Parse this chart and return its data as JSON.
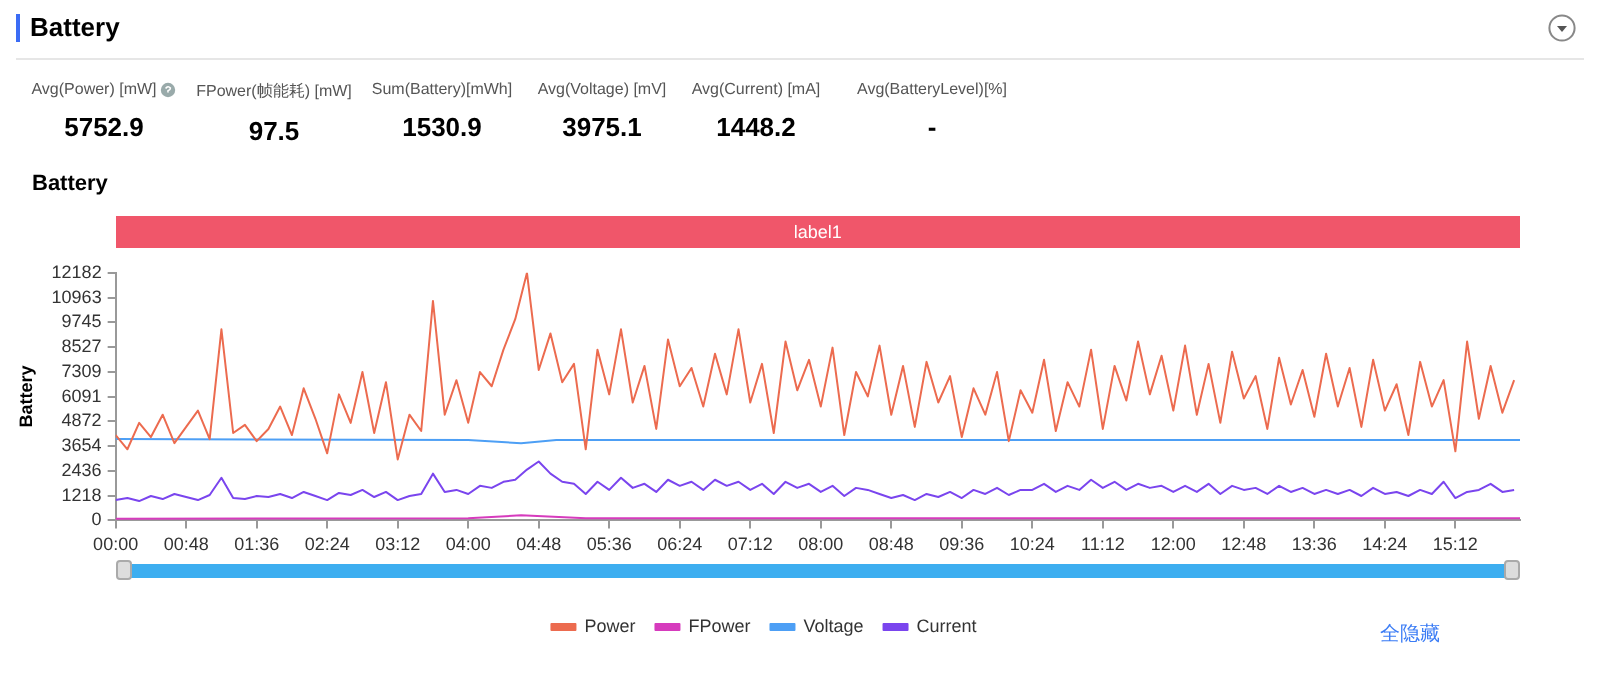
{
  "chart_data": {
    "type": "line",
    "title": "Battery",
    "subtitle": "Battery",
    "ylabel": "Battery",
    "annotations": [
      "Avg(Power) [mW]",
      "FPower(帧能耗) [mW]",
      "Sum(Battery)[mWh]",
      "Avg(Voltage) [mV]",
      "Avg(Current) [mA]",
      "Avg(BatteryLevel)[%]",
      "5752.9",
      "97.5",
      "1530.9",
      "3975.1",
      "1448.2",
      "-",
      "全隐藏",
      "label1"
    ],
    "x": [
      0,
      8,
      16,
      24,
      32,
      40,
      48,
      56,
      64,
      72,
      80,
      88,
      96,
      104,
      112,
      120,
      128,
      136,
      144,
      152,
      160,
      168,
      176,
      184,
      192,
      200,
      208,
      216,
      224,
      232,
      240,
      248,
      256,
      264,
      272,
      280,
      288,
      296,
      304,
      312,
      320,
      328,
      336,
      344,
      352,
      360,
      368,
      376,
      384,
      392,
      400,
      408,
      416,
      424,
      432,
      440,
      448,
      456,
      464,
      472,
      480,
      488,
      496,
      504,
      512,
      520,
      528,
      536,
      544,
      552,
      560,
      568,
      576,
      584,
      592,
      600,
      608,
      616,
      624,
      632,
      640,
      648,
      656,
      664,
      672,
      680,
      688,
      696,
      704,
      712,
      720,
      728,
      736,
      744,
      752,
      760,
      768,
      776,
      784,
      792,
      800,
      808,
      816,
      824,
      832,
      840,
      848,
      856,
      864,
      872,
      880,
      888,
      896,
      904,
      912,
      920,
      928,
      936,
      944,
      952
    ],
    "series": [
      {
        "name": "Power",
        "color": "#ec6b4f",
        "values": [
          4200,
          3500,
          4800,
          4100,
          5200,
          3800,
          4600,
          5400,
          4000,
          9400,
          4300,
          4700,
          3900,
          4500,
          5600,
          4200,
          6500,
          5000,
          3300,
          6200,
          4800,
          7300,
          4300,
          6800,
          3000,
          5200,
          4400,
          10800,
          5200,
          6900,
          4800,
          7300,
          6600,
          8400,
          9900,
          12182,
          7400,
          9200,
          6800,
          7700,
          3500,
          8400,
          6200,
          9400,
          5800,
          7600,
          4500,
          8900,
          6600,
          7500,
          5600,
          8200,
          6200,
          9400,
          5800,
          7700,
          4300,
          8800,
          6400,
          7900,
          5600,
          8500,
          4200,
          7300,
          6100,
          8600,
          5200,
          7600,
          4600,
          7800,
          5800,
          7100,
          4100,
          6500,
          5200,
          7300,
          3900,
          6400,
          5300,
          7900,
          4400,
          6800,
          5600,
          8400,
          4500,
          7600,
          5900,
          8800,
          6200,
          8100,
          5400,
          8600,
          5200,
          7700,
          4800,
          8300,
          6000,
          7100,
          4500,
          8000,
          5700,
          7400,
          5100,
          8200,
          5600,
          7500,
          4600,
          7900,
          5400,
          6700,
          4200,
          7800,
          5600,
          6900,
          3400,
          8800,
          5000,
          7600,
          5300,
          6900
        ]
      },
      {
        "name": "FPower",
        "color": "#d63bbd",
        "x": [
          0,
          240,
          276,
          320,
          956
        ],
        "values": [
          80,
          100,
          250,
          110,
          100
        ]
      },
      {
        "name": "Voltage",
        "color": "#4d9ff5",
        "x": [
          0,
          240,
          276,
          300,
          956
        ],
        "values": [
          4000,
          3950,
          3800,
          3950,
          3950
        ]
      },
      {
        "name": "Current",
        "color": "#7a45ee",
        "values": [
          1000,
          1100,
          950,
          1200,
          1050,
          1300,
          1150,
          1000,
          1250,
          2100,
          1100,
          1050,
          1200,
          1150,
          1300,
          1100,
          1400,
          1200,
          1000,
          1350,
          1250,
          1500,
          1150,
          1400,
          1000,
          1200,
          1300,
          2300,
          1400,
          1500,
          1300,
          1700,
          1600,
          1900,
          2000,
          2500,
          2900,
          2300,
          1900,
          1800,
          1300,
          1900,
          1500,
          2100,
          1600,
          1800,
          1400,
          2000,
          1700,
          1900,
          1500,
          2000,
          1700,
          1900,
          1500,
          1800,
          1300,
          1900,
          1600,
          1800,
          1400,
          1700,
          1200,
          1600,
          1500,
          1300,
          1100,
          1250,
          1000,
          1300,
          1150,
          1400,
          1100,
          1500,
          1300,
          1600,
          1250,
          1500,
          1500,
          1800,
          1400,
          1700,
          1500,
          2000,
          1600,
          1900,
          1500,
          1800,
          1600,
          1700,
          1400,
          1700,
          1400,
          1800,
          1300,
          1700,
          1500,
          1600,
          1300,
          1700,
          1400,
          1600,
          1300,
          1500,
          1300,
          1500,
          1200,
          1600,
          1300,
          1400,
          1200,
          1500,
          1300,
          1900,
          1100,
          1400,
          1500,
          1800,
          1400,
          1500
        ]
      }
    ],
    "xlim": [
      0,
      956
    ],
    "xticks": [
      {
        "value": 0,
        "label": "00:00"
      },
      {
        "value": 48,
        "label": "00:48"
      },
      {
        "value": 96,
        "label": "01:36"
      },
      {
        "value": 144,
        "label": "02:24"
      },
      {
        "value": 192,
        "label": "03:12"
      },
      {
        "value": 240,
        "label": "04:00"
      },
      {
        "value": 288,
        "label": "04:48"
      },
      {
        "value": 336,
        "label": "05:36"
      },
      {
        "value": 384,
        "label": "06:24"
      },
      {
        "value": 432,
        "label": "07:12"
      },
      {
        "value": 480,
        "label": "08:00"
      },
      {
        "value": 528,
        "label": "08:48"
      },
      {
        "value": 576,
        "label": "09:36"
      },
      {
        "value": 624,
        "label": "10:24"
      },
      {
        "value": 672,
        "label": "11:12"
      },
      {
        "value": 720,
        "label": "12:00"
      },
      {
        "value": 768,
        "label": "12:48"
      },
      {
        "value": 816,
        "label": "13:36"
      },
      {
        "value": 864,
        "label": "14:24"
      },
      {
        "value": 912,
        "label": "15:12"
      }
    ],
    "ylim": [
      0,
      12182
    ],
    "yticks": [
      0,
      1218,
      2436,
      3654,
      4872,
      6091,
      7309,
      8527,
      9745,
      10963,
      12182
    ],
    "grid": false,
    "legend": "bottom",
    "marker": "none",
    "line_style": "solid"
  }
}
